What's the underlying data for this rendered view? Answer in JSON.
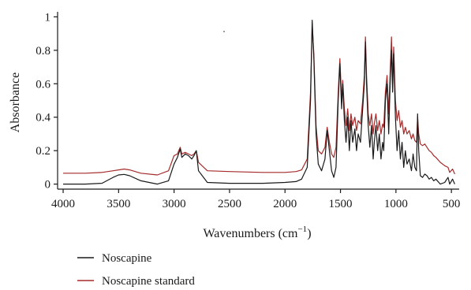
{
  "chart_data": {
    "type": "line",
    "xlabel": "Wavenumbers (cm",
    "xlabel_sup": "−1",
    "xlabel_end": ")",
    "ylabel": "Absorbance",
    "x_reversed": true,
    "xlim": [
      4050,
      430
    ],
    "ylim": [
      -0.03,
      1.03
    ],
    "x_ticks": [
      4000,
      3500,
      3000,
      2500,
      2000,
      1500,
      1000,
      500
    ],
    "y_ticks": [
      0,
      0.2,
      0.4,
      0.6,
      0.8,
      1
    ],
    "y_tick_labels": [
      "0",
      "0.2",
      "0.4",
      "0.6",
      "0.8",
      "1"
    ],
    "legend_position": "bottom-left",
    "series": [
      {
        "name": "Noscapine",
        "color": "#1a1a1a",
        "points": [
          [
            4000,
            0.0
          ],
          [
            3800,
            0.0
          ],
          [
            3650,
            0.005
          ],
          [
            3550,
            0.04
          ],
          [
            3500,
            0.055
          ],
          [
            3450,
            0.058
          ],
          [
            3400,
            0.05
          ],
          [
            3300,
            0.02
          ],
          [
            3150,
            0.0
          ],
          [
            3050,
            0.02
          ],
          [
            3000,
            0.12
          ],
          [
            2970,
            0.16
          ],
          [
            2945,
            0.21
          ],
          [
            2930,
            0.16
          ],
          [
            2900,
            0.18
          ],
          [
            2870,
            0.17
          ],
          [
            2840,
            0.15
          ],
          [
            2820,
            0.17
          ],
          [
            2800,
            0.2
          ],
          [
            2780,
            0.08
          ],
          [
            2700,
            0.01
          ],
          [
            2500,
            0.005
          ],
          [
            2200,
            0.005
          ],
          [
            2000,
            0.01
          ],
          [
            1900,
            0.015
          ],
          [
            1850,
            0.03
          ],
          [
            1800,
            0.1
          ],
          [
            1770,
            0.5
          ],
          [
            1755,
            0.98
          ],
          [
            1740,
            0.75
          ],
          [
            1720,
            0.3
          ],
          [
            1700,
            0.12
          ],
          [
            1670,
            0.08
          ],
          [
            1640,
            0.15
          ],
          [
            1620,
            0.32
          ],
          [
            1600,
            0.2
          ],
          [
            1580,
            0.08
          ],
          [
            1560,
            0.04
          ],
          [
            1540,
            0.1
          ],
          [
            1520,
            0.5
          ],
          [
            1505,
            0.72
          ],
          [
            1490,
            0.45
          ],
          [
            1480,
            0.6
          ],
          [
            1465,
            0.38
          ],
          [
            1450,
            0.25
          ],
          [
            1435,
            0.4
          ],
          [
            1420,
            0.2
          ],
          [
            1405,
            0.38
          ],
          [
            1390,
            0.25
          ],
          [
            1370,
            0.33
          ],
          [
            1355,
            0.2
          ],
          [
            1340,
            0.3
          ],
          [
            1320,
            0.25
          ],
          [
            1300,
            0.45
          ],
          [
            1285,
            0.6
          ],
          [
            1275,
            0.85
          ],
          [
            1265,
            0.6
          ],
          [
            1250,
            0.35
          ],
          [
            1235,
            0.22
          ],
          [
            1220,
            0.35
          ],
          [
            1205,
            0.15
          ],
          [
            1195,
            0.25
          ],
          [
            1180,
            0.35
          ],
          [
            1165,
            0.2
          ],
          [
            1150,
            0.3
          ],
          [
            1135,
            0.15
          ],
          [
            1120,
            0.25
          ],
          [
            1110,
            0.2
          ],
          [
            1095,
            0.5
          ],
          [
            1080,
            0.6
          ],
          [
            1065,
            0.3
          ],
          [
            1050,
            0.65
          ],
          [
            1040,
            0.8
          ],
          [
            1030,
            0.55
          ],
          [
            1020,
            0.78
          ],
          [
            1005,
            0.4
          ],
          [
            990,
            0.2
          ],
          [
            975,
            0.32
          ],
          [
            960,
            0.15
          ],
          [
            945,
            0.25
          ],
          [
            930,
            0.1
          ],
          [
            915,
            0.2
          ],
          [
            900,
            0.12
          ],
          [
            880,
            0.15
          ],
          [
            860,
            0.08
          ],
          [
            845,
            0.18
          ],
          [
            830,
            0.1
          ],
          [
            815,
            0.08
          ],
          [
            805,
            0.42
          ],
          [
            795,
            0.2
          ],
          [
            780,
            0.05
          ],
          [
            760,
            0.04
          ],
          [
            740,
            0.06
          ],
          [
            720,
            0.05
          ],
          [
            700,
            0.03
          ],
          [
            680,
            0.04
          ],
          [
            660,
            0.02
          ],
          [
            640,
            0.03
          ],
          [
            600,
            0.0
          ],
          [
            560,
            0.01
          ],
          [
            530,
            0.04
          ],
          [
            515,
            0.0
          ],
          [
            490,
            0.03
          ],
          [
            470,
            0.0
          ]
        ]
      },
      {
        "name": "Noscapine standard",
        "color": "#a52a2a",
        "points": [
          [
            4000,
            0.065
          ],
          [
            3800,
            0.065
          ],
          [
            3650,
            0.07
          ],
          [
            3550,
            0.08
          ],
          [
            3500,
            0.085
          ],
          [
            3450,
            0.09
          ],
          [
            3400,
            0.085
          ],
          [
            3300,
            0.065
          ],
          [
            3150,
            0.055
          ],
          [
            3050,
            0.08
          ],
          [
            3000,
            0.17
          ],
          [
            2970,
            0.18
          ],
          [
            2945,
            0.22
          ],
          [
            2930,
            0.18
          ],
          [
            2900,
            0.19
          ],
          [
            2870,
            0.18
          ],
          [
            2840,
            0.17
          ],
          [
            2820,
            0.18
          ],
          [
            2800,
            0.2
          ],
          [
            2780,
            0.13
          ],
          [
            2700,
            0.08
          ],
          [
            2500,
            0.075
          ],
          [
            2200,
            0.07
          ],
          [
            2000,
            0.07
          ],
          [
            1900,
            0.075
          ],
          [
            1850,
            0.085
          ],
          [
            1800,
            0.15
          ],
          [
            1770,
            0.55
          ],
          [
            1755,
            0.95
          ],
          [
            1740,
            0.78
          ],
          [
            1720,
            0.35
          ],
          [
            1700,
            0.2
          ],
          [
            1670,
            0.18
          ],
          [
            1640,
            0.22
          ],
          [
            1620,
            0.34
          ],
          [
            1600,
            0.25
          ],
          [
            1580,
            0.18
          ],
          [
            1560,
            0.16
          ],
          [
            1540,
            0.22
          ],
          [
            1520,
            0.55
          ],
          [
            1505,
            0.75
          ],
          [
            1490,
            0.5
          ],
          [
            1480,
            0.62
          ],
          [
            1465,
            0.45
          ],
          [
            1450,
            0.35
          ],
          [
            1435,
            0.45
          ],
          [
            1420,
            0.32
          ],
          [
            1405,
            0.42
          ],
          [
            1390,
            0.35
          ],
          [
            1370,
            0.4
          ],
          [
            1355,
            0.32
          ],
          [
            1340,
            0.38
          ],
          [
            1320,
            0.36
          ],
          [
            1300,
            0.5
          ],
          [
            1285,
            0.65
          ],
          [
            1275,
            0.88
          ],
          [
            1265,
            0.65
          ],
          [
            1250,
            0.42
          ],
          [
            1235,
            0.35
          ],
          [
            1220,
            0.42
          ],
          [
            1205,
            0.3
          ],
          [
            1195,
            0.36
          ],
          [
            1180,
            0.42
          ],
          [
            1165,
            0.32
          ],
          [
            1150,
            0.38
          ],
          [
            1135,
            0.3
          ],
          [
            1120,
            0.36
          ],
          [
            1110,
            0.34
          ],
          [
            1095,
            0.55
          ],
          [
            1080,
            0.65
          ],
          [
            1065,
            0.42
          ],
          [
            1050,
            0.7
          ],
          [
            1040,
            0.88
          ],
          [
            1030,
            0.62
          ],
          [
            1020,
            0.82
          ],
          [
            1005,
            0.5
          ],
          [
            990,
            0.38
          ],
          [
            975,
            0.44
          ],
          [
            960,
            0.34
          ],
          [
            945,
            0.38
          ],
          [
            930,
            0.3
          ],
          [
            915,
            0.34
          ],
          [
            900,
            0.3
          ],
          [
            880,
            0.32
          ],
          [
            860,
            0.27
          ],
          [
            845,
            0.3
          ],
          [
            830,
            0.26
          ],
          [
            815,
            0.25
          ],
          [
            805,
            0.4
          ],
          [
            795,
            0.3
          ],
          [
            780,
            0.24
          ],
          [
            760,
            0.23
          ],
          [
            740,
            0.24
          ],
          [
            720,
            0.22
          ],
          [
            700,
            0.2
          ],
          [
            680,
            0.19
          ],
          [
            660,
            0.17
          ],
          [
            640,
            0.16
          ],
          [
            600,
            0.13
          ],
          [
            560,
            0.11
          ],
          [
            530,
            0.1
          ],
          [
            515,
            0.07
          ],
          [
            490,
            0.09
          ],
          [
            470,
            0.06
          ]
        ]
      }
    ]
  }
}
